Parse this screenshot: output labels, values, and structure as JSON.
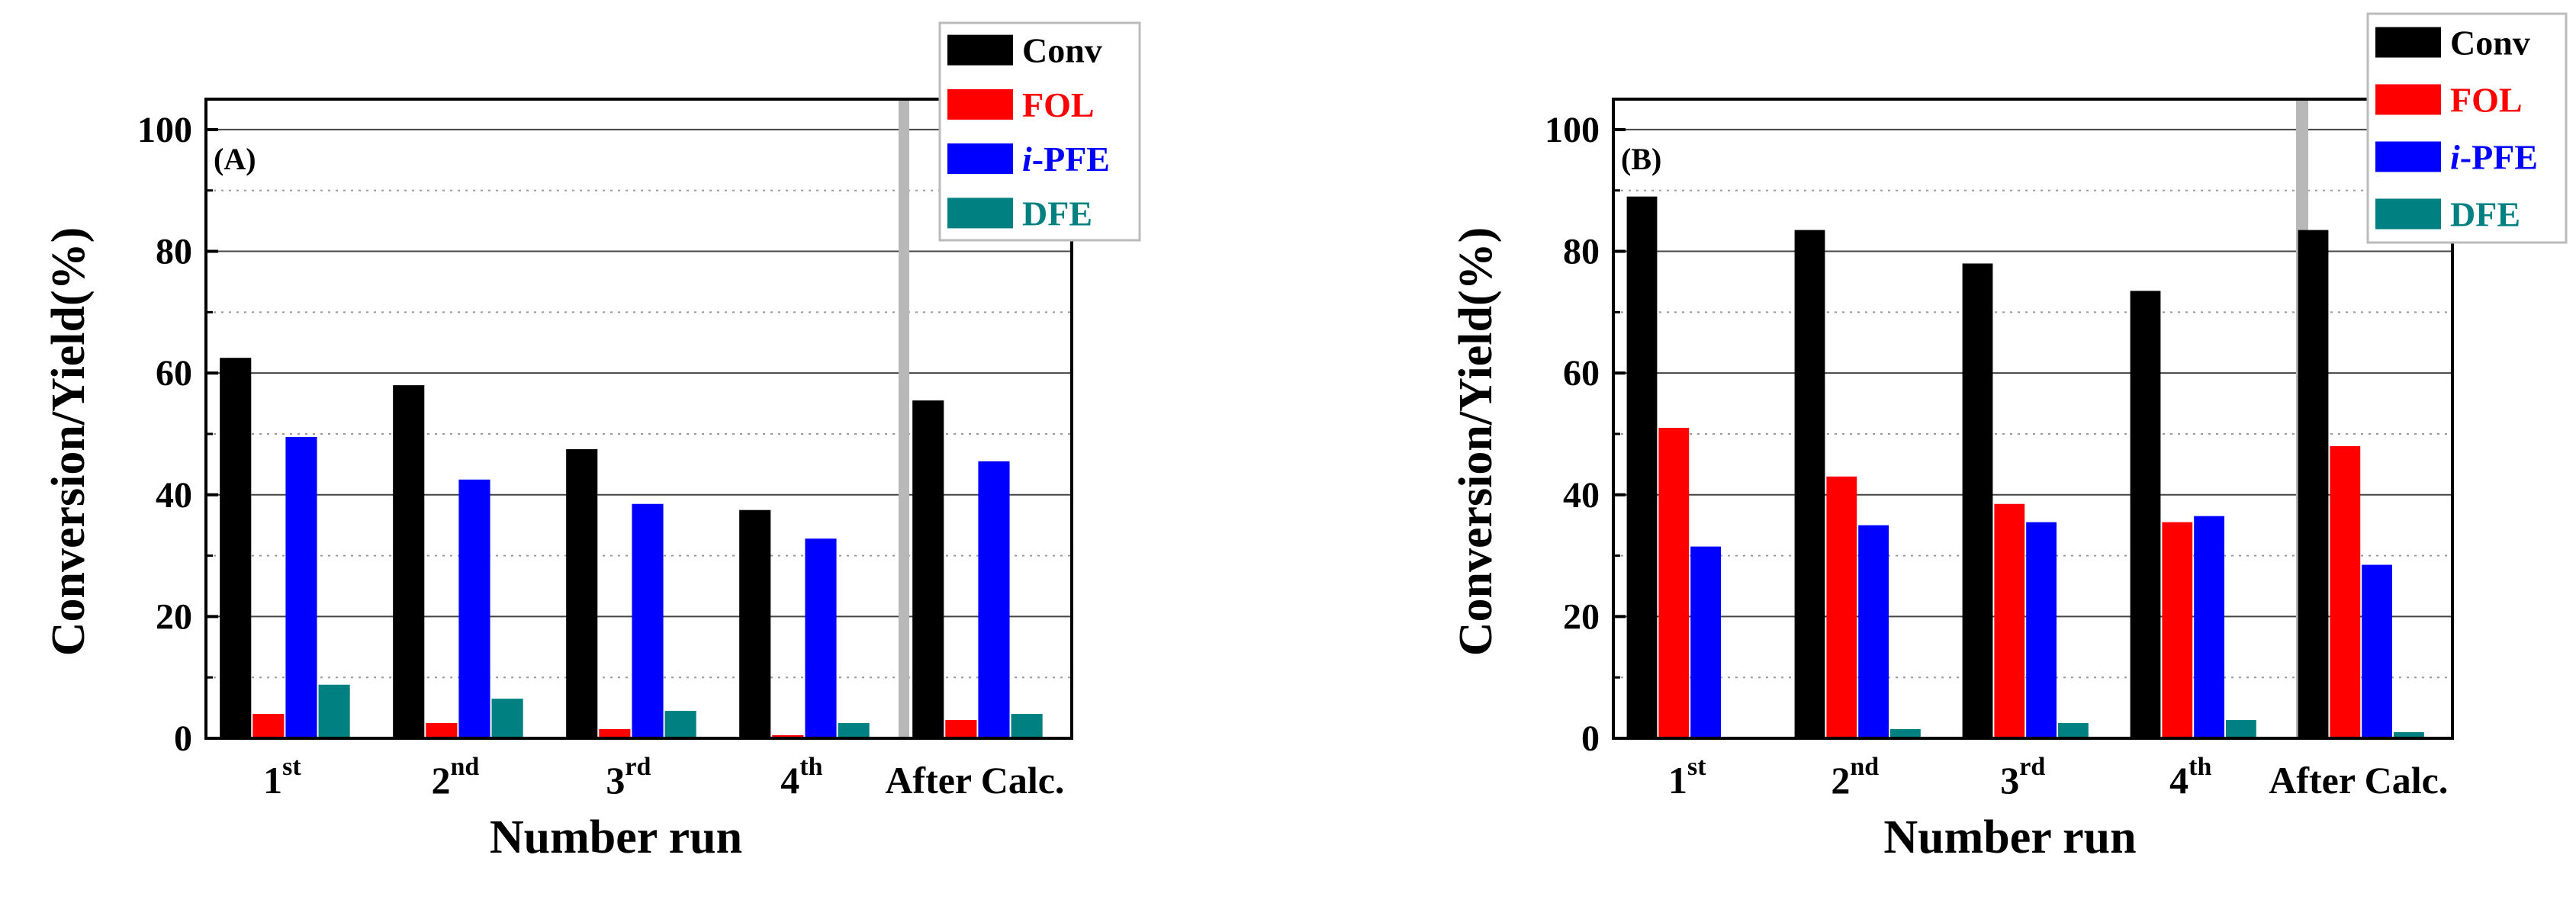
{
  "chart_data": [
    {
      "type": "bar",
      "panel_label": "(A)",
      "categories": [
        {
          "base": "1",
          "sup": "st"
        },
        {
          "base": "2",
          "sup": "nd"
        },
        {
          "base": "3",
          "sup": "rd"
        },
        {
          "base": "4",
          "sup": "th"
        },
        {
          "base": "After Calc.",
          "sup": ""
        }
      ],
      "series": [
        {
          "name": "Conv",
          "color": "#000000",
          "values": [
            62.5,
            58,
            47.5,
            37.5,
            55.5
          ]
        },
        {
          "name": "FOL",
          "color": "#ff0000",
          "values": [
            4,
            2.5,
            1.5,
            0.5,
            3
          ]
        },
        {
          "name": "i-PFE",
          "label_prefix": "i",
          "label_rest": "-PFE",
          "color": "#0000ff",
          "values": [
            49.5,
            42.5,
            38.5,
            32.8,
            45.5
          ]
        },
        {
          "name": "DFE",
          "color": "#008080",
          "values": [
            8.8,
            6.5,
            4.5,
            2.5,
            4
          ]
        }
      ],
      "xlabel": "Number run",
      "ylabel": "Conversion/Yield(%)",
      "ylim": [
        0,
        105
      ],
      "yticks": [
        0,
        20,
        40,
        60,
        80,
        100
      ],
      "grid": true,
      "legend": "top-right"
    },
    {
      "type": "bar",
      "panel_label": "(B)",
      "categories": [
        {
          "base": "1",
          "sup": "st"
        },
        {
          "base": "2",
          "sup": "nd"
        },
        {
          "base": "3",
          "sup": "rd"
        },
        {
          "base": "4",
          "sup": "th"
        },
        {
          "base": "After Calc.",
          "sup": ""
        }
      ],
      "series": [
        {
          "name": "Conv",
          "color": "#000000",
          "values": [
            89,
            83.5,
            78,
            73.5,
            83.5
          ]
        },
        {
          "name": "FOL",
          "color": "#ff0000",
          "values": [
            51,
            43,
            38.5,
            35.5,
            48
          ]
        },
        {
          "name": "i-PFE",
          "label_prefix": "i",
          "label_rest": "-PFE",
          "color": "#0000ff",
          "values": [
            31.5,
            35,
            35.5,
            36.5,
            28.5
          ]
        },
        {
          "name": "DFE",
          "color": "#008080",
          "values": [
            0,
            1.5,
            2.5,
            3,
            1
          ]
        }
      ],
      "xlabel": "Number run",
      "ylabel": "Conversion/Yield(%)",
      "ylim": [
        0,
        105
      ],
      "yticks": [
        0,
        20,
        40,
        60,
        80,
        100
      ],
      "grid": true,
      "legend": "top-right"
    }
  ]
}
